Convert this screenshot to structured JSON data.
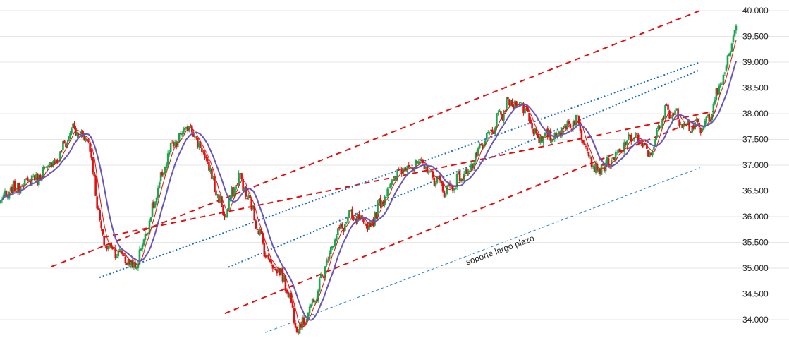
{
  "chart_data": {
    "type": "candlestick",
    "title": "",
    "xlabel": "",
    "ylabel": "",
    "ylim": [
      33.75,
      40.15
    ],
    "yticks": [
      34.0,
      34.5,
      35.0,
      35.5,
      36.0,
      36.5,
      37.0,
      37.5,
      38.0,
      38.5,
      39.0,
      39.5,
      40.0
    ],
    "ytick_labels": [
      "34.000",
      "34.500",
      "35.000",
      "35.500",
      "36.000",
      "36.500",
      "37.000",
      "37.500",
      "38.000",
      "38.500",
      "39.000",
      "39.500",
      "40.000"
    ],
    "grid": true,
    "grid_axis": "y",
    "legend": "none",
    "colors": {
      "up_candle": "#1aa64a",
      "down_candle": "#e01010",
      "fast_ma": "#e01010",
      "slow_ma": "#6655bb",
      "resistance_line": "#e01010",
      "channel_dotted": "#1a6fc0",
      "support_line": "#2a80c8",
      "grid": "#e6e6e6"
    },
    "anchors": [
      [
        0,
        36.3
      ],
      [
        12,
        36.6
      ],
      [
        28,
        36.8
      ],
      [
        42,
        37.2
      ],
      [
        50,
        37.7
      ],
      [
        62,
        37.5
      ],
      [
        72,
        35.5
      ],
      [
        84,
        35.3
      ],
      [
        95,
        35.0
      ],
      [
        108,
        36.2
      ],
      [
        118,
        37.2
      ],
      [
        133,
        37.8
      ],
      [
        145,
        37.1
      ],
      [
        158,
        36.0
      ],
      [
        168,
        36.8
      ],
      [
        178,
        36.1
      ],
      [
        188,
        35.2
      ],
      [
        200,
        34.8
      ],
      [
        210,
        33.8
      ],
      [
        222,
        34.4
      ],
      [
        234,
        35.5
      ],
      [
        246,
        36.0
      ],
      [
        260,
        35.8
      ],
      [
        272,
        36.5
      ],
      [
        285,
        37.0
      ],
      [
        298,
        37.0
      ],
      [
        314,
        36.5
      ],
      [
        330,
        36.9
      ],
      [
        345,
        37.6
      ],
      [
        358,
        38.2
      ],
      [
        368,
        38.2
      ],
      [
        380,
        37.5
      ],
      [
        392,
        37.6
      ],
      [
        406,
        37.9
      ],
      [
        420,
        36.9
      ],
      [
        433,
        37.1
      ],
      [
        446,
        37.6
      ],
      [
        458,
        37.2
      ],
      [
        470,
        38.1
      ],
      [
        484,
        37.8
      ],
      [
        496,
        37.7
      ],
      [
        510,
        38.7
      ],
      [
        519,
        39.7
      ]
    ],
    "candle_count": 520,
    "lines": [
      {
        "name": "resistance",
        "style": "dashed",
        "points": [
          [
            0.07,
            35.03
          ],
          [
            0.95,
            40.0
          ]
        ]
      },
      {
        "name": "support",
        "style": "dashed",
        "points": [
          [
            0.305,
            34.12
          ],
          [
            0.95,
            37.9
          ]
        ]
      },
      {
        "name": "upper channel",
        "style": "dashed",
        "points": [
          [
            0.14,
            35.6
          ],
          [
            0.97,
            38.05
          ]
        ]
      },
      {
        "name": "channel 1",
        "style": "dotted",
        "points": [
          [
            0.135,
            34.82
          ],
          [
            0.95,
            39.0
          ]
        ]
      },
      {
        "name": "channel 2",
        "style": "dotted",
        "points": [
          [
            0.31,
            35.02
          ],
          [
            0.95,
            38.85
          ]
        ]
      },
      {
        "name": "soporte largo plazo",
        "style": "dashed-thin",
        "points": [
          [
            0.36,
            33.75
          ],
          [
            0.95,
            36.95
          ]
        ]
      }
    ],
    "annotations": [
      {
        "text": "soporte  largo plazo",
        "x": 0.68,
        "y": 35.3,
        "angle": -20
      }
    ]
  }
}
